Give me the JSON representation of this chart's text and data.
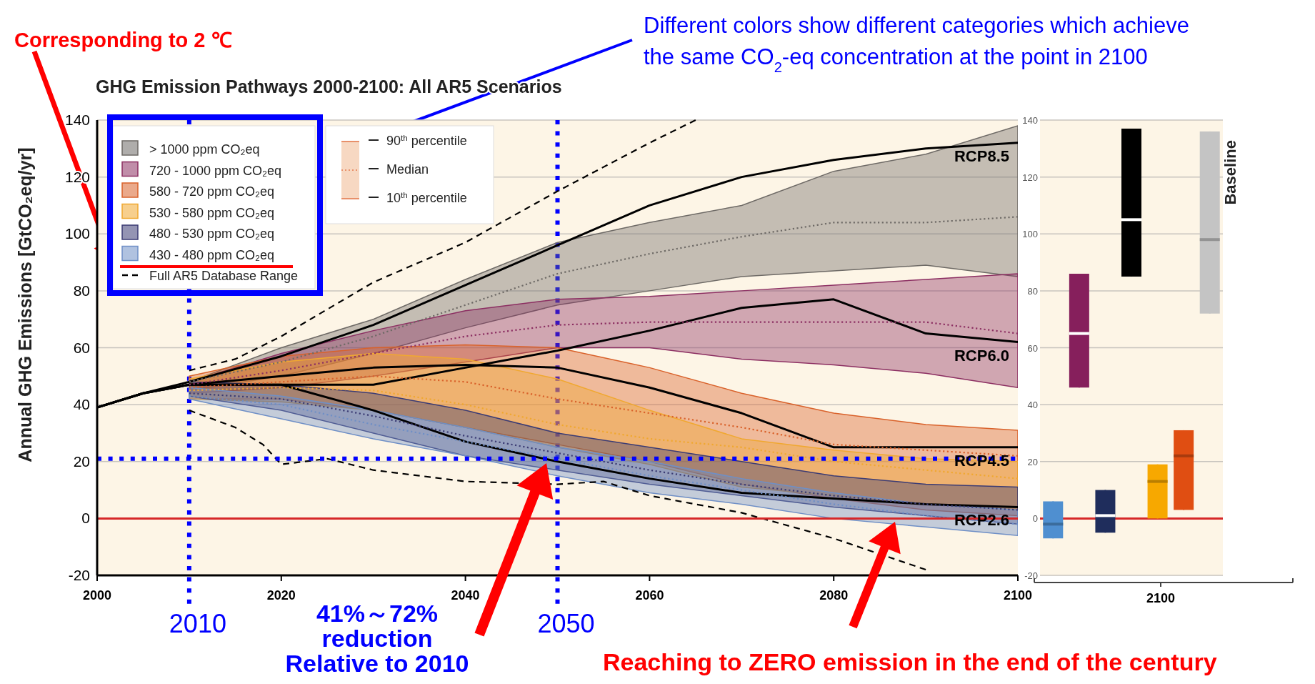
{
  "chart_data": [
    {
      "type": "line",
      "title": "GHG Emission Pathways 2000-2100: All AR5 Scenarios",
      "ylabel": "Annual GHG Emissions [GtCO₂eq/yr]",
      "x": [
        2010,
        2020,
        2030,
        2040,
        2050,
        2060,
        2070,
        2080,
        2090,
        2100
      ],
      "xlim": [
        2000,
        2100
      ],
      "xticks": [
        2000,
        2020,
        2040,
        2060,
        2080,
        2100
      ],
      "ylim": [
        -20,
        140
      ],
      "yticks": [
        -20,
        0,
        20,
        40,
        60,
        80,
        100,
        120,
        140
      ],
      "grid": "y",
      "legend": "top left",
      "series": [
        {
          "name": "> 1000 ppm CO₂eq",
          "color": "#6e6a66",
          "line_style": "dotted",
          "values": [
            48,
            55,
            64,
            75,
            86,
            93,
            99,
            104,
            104,
            106
          ],
          "lower": [
            45,
            50,
            58,
            67,
            75,
            80,
            85,
            87,
            89,
            85
          ],
          "upper": [
            48,
            60,
            70,
            84,
            97,
            104,
            110,
            122,
            128,
            138
          ]
        },
        {
          "name": "720 - 1000 ppm CO₂eq",
          "color": "#8c2f62",
          "line_style": "dotted",
          "values": [
            47,
            52,
            58,
            64,
            68,
            69,
            69,
            69,
            69,
            65
          ],
          "lower": [
            44,
            46,
            50,
            55,
            60,
            60,
            56,
            54,
            51,
            46
          ],
          "upper": [
            48,
            58,
            66,
            73,
            77,
            78,
            80,
            82,
            84,
            86
          ]
        },
        {
          "name": "580 - 720 ppm CO₂eq",
          "color": "#d9622b",
          "line_style": "dotted",
          "values": [
            46,
            48,
            50,
            48,
            42,
            37,
            32,
            26,
            24,
            22
          ],
          "lower": [
            42,
            42,
            38,
            32,
            26,
            20,
            12,
            7,
            3,
            1
          ],
          "upper": [
            50,
            57,
            60,
            61,
            60,
            53,
            44,
            37,
            33,
            31
          ]
        },
        {
          "name": "530 - 580 ppm CO₂eq",
          "color": "#f0a830",
          "line_style": "dotted",
          "values": [
            45,
            46,
            45,
            40,
            33,
            28,
            25,
            20,
            17,
            14
          ],
          "lower": [
            42,
            41,
            38,
            32,
            25,
            19,
            11,
            8,
            5,
            3
          ],
          "upper": [
            49,
            55,
            58,
            56,
            49,
            38,
            28,
            24,
            21,
            20
          ]
        },
        {
          "name": "480 - 530 ppm CO₂eq",
          "color": "#3c3c74",
          "line_style": "dotted",
          "values": [
            44,
            42,
            36,
            29,
            23,
            17,
            12,
            8,
            5,
            3
          ],
          "lower": [
            43,
            38,
            30,
            22,
            17,
            12,
            8,
            4,
            1,
            -2
          ],
          "upper": [
            48,
            47,
            44,
            38,
            30,
            25,
            20,
            15,
            12,
            11
          ]
        },
        {
          "name": "430 - 480 ppm CO₂eq",
          "color": "#6f8fc6",
          "line_style": "dotted",
          "values": [
            43,
            40,
            33,
            27,
            21,
            15,
            10,
            5,
            1,
            -2
          ],
          "lower": [
            42,
            35,
            28,
            22,
            15,
            9,
            5,
            0,
            -3,
            -6
          ],
          "upper": [
            46,
            43,
            38,
            32,
            25,
            20,
            14,
            9,
            5,
            3
          ]
        },
        {
          "name": "Full AR5 Database Range",
          "color": "#000000",
          "line_style": "dashed",
          "x": [
            2010,
            2015,
            2020,
            2030,
            2040,
            2050,
            2060,
            2065
          ],
          "values": [
            52,
            56,
            64,
            83,
            97,
            115,
            132,
            140
          ]
        },
        {
          "color": "#000000",
          "line_style": "dashed",
          "x": [
            2010,
            2015,
            2018,
            2020,
            2025,
            2030,
            2040,
            2050,
            2055,
            2060,
            2070,
            2080,
            2090
          ],
          "values": [
            38,
            32,
            26,
            19,
            21,
            17,
            13,
            12,
            13,
            8,
            2,
            -7,
            -18
          ]
        },
        {
          "name": "RCP8.5",
          "color": "#000000",
          "line_style": "solid",
          "x": [
            2000,
            2005,
            2010,
            2020,
            2030,
            2040,
            2050,
            2060,
            2070,
            2080,
            2090,
            2100
          ],
          "values": [
            39,
            44,
            48,
            57,
            68,
            82,
            96,
            110,
            120,
            126,
            130,
            132
          ]
        },
        {
          "name": "RCP6.0",
          "color": "#000000",
          "line_style": "solid",
          "x": [
            2000,
            2005,
            2010,
            2020,
            2030,
            2040,
            2050,
            2060,
            2070,
            2080,
            2090,
            2100
          ],
          "values": [
            39,
            44,
            47,
            47,
            47,
            53,
            59,
            66,
            74,
            77,
            65,
            62
          ]
        },
        {
          "name": "RCP4.5",
          "color": "#000000",
          "line_style": "solid",
          "x": [
            2000,
            2005,
            2010,
            2020,
            2030,
            2040,
            2050,
            2060,
            2070,
            2080,
            2090,
            2100
          ],
          "values": [
            39,
            44,
            47,
            50,
            53,
            54,
            53,
            46,
            37,
            25,
            25,
            25
          ]
        },
        {
          "name": "RCP2.6",
          "color": "#000000",
          "line_style": "solid",
          "x": [
            2000,
            2005,
            2010,
            2020,
            2030,
            2040,
            2050,
            2060,
            2070,
            2080,
            2090,
            2100
          ],
          "values": [
            39,
            44,
            47,
            47,
            38,
            27,
            20,
            14,
            9,
            7,
            5,
            4
          ]
        }
      ],
      "ref_lines": [
        {
          "axis": "y",
          "value": 0,
          "color": "#d62728",
          "line_style": "solid"
        },
        {
          "axis": "x",
          "value": 2010,
          "label": "2010",
          "color": "#0000ff",
          "line_style": "dotted"
        },
        {
          "axis": "x",
          "value": 2050,
          "label": "2050",
          "color": "#0000ff",
          "line_style": "dotted"
        },
        {
          "axis": "y",
          "value": 21,
          "color": "#0000ff",
          "line_style": "dotted"
        }
      ],
      "annotations": [
        "Corresponding to 2 ℃",
        "Different colors show different categories which achieve\nthe same CO$_{2}$-eq concentration at the point in 2100",
        "41%～72%\nreduction\nRelative to 2010",
        "Reaching to ZERO emission in the end of the century",
        "90$^{th}$ percentile",
        "Median",
        "10$^{th}$ percentile"
      ]
    },
    {
      "type": "box",
      "categories": [
        null,
        null,
        null,
        null,
        null,
        null,
        null
      ],
      "colors": [
        "#4f8fd0",
        "#861f5c",
        "#1f2d5c",
        "#000000",
        "#f7a800",
        "#e04e12",
        "#c4c4c4"
      ],
      "boxes": [
        {
          "low": -7,
          "q1": -7,
          "median": -2,
          "q3": 6,
          "high": 6
        },
        {
          "low": 46,
          "q1": 46,
          "median": 65,
          "q3": 86,
          "high": 86
        },
        {
          "low": -5,
          "q1": -5,
          "median": 1,
          "q3": 10,
          "high": 10
        },
        {
          "low": 85,
          "q1": 85,
          "median": 105,
          "q3": 137,
          "high": 137
        },
        {
          "low": 0,
          "q1": 0,
          "median": 13,
          "q3": 19,
          "high": 19
        },
        {
          "low": 3,
          "q1": 3,
          "median": 22,
          "q3": 31,
          "high": 31
        },
        {
          "low": 72,
          "q1": 72,
          "median": 98,
          "q3": 136,
          "high": 136
        }
      ],
      "ylim": [
        -20,
        140
      ],
      "yticks": [
        -20,
        0,
        20,
        40,
        60,
        80,
        100,
        120,
        140
      ],
      "tick_labels": "y",
      "grid": "y",
      "ref_lines": [
        {
          "axis": "y",
          "value": 0,
          "color": "#d62728",
          "line_style": "solid"
        }
      ],
      "annotations": [
        "2100",
        "Baseline"
      ]
    }
  ]
}
